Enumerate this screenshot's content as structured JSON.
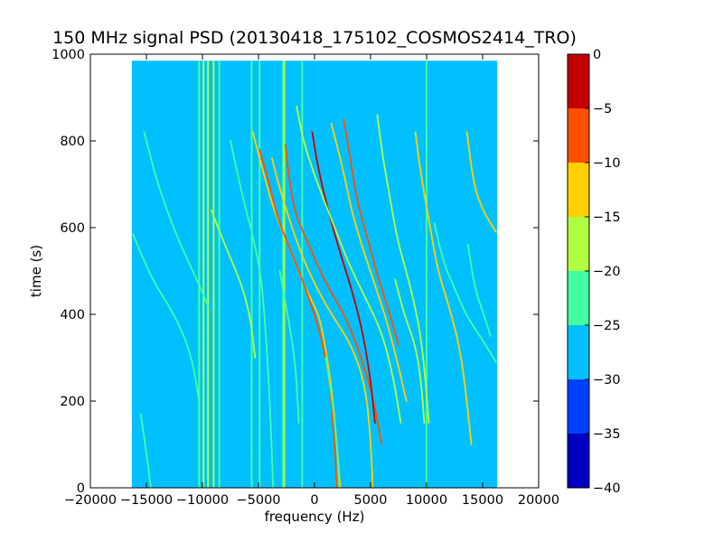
{
  "chart_data": {
    "type": "heatmap",
    "title": "150 MHz signal PSD (20130418_175102_COSMOS2414_TRO)",
    "xlabel": "frequency (Hz)",
    "ylabel": "time (s)",
    "xlim": [
      -20000,
      20000
    ],
    "ylim": [
      0,
      1000
    ],
    "xticks": [
      -20000,
      -15000,
      -10000,
      -5000,
      0,
      5000,
      10000,
      15000,
      20000
    ],
    "yticks": [
      0,
      200,
      400,
      600,
      800,
      1000
    ],
    "xtick_labels": [
      "−20000",
      "−15000",
      "−10000",
      "−5000",
      "0",
      "5000",
      "10000",
      "15000",
      "20000"
    ],
    "ytick_labels": [
      "0",
      "200",
      "400",
      "600",
      "800",
      "1000"
    ],
    "data_extent": {
      "x": [
        -16300,
        16300
      ],
      "y": [
        0,
        985
      ]
    },
    "background_level_db": -27.5,
    "colorbar": {
      "levels": [
        -40,
        -35,
        -30,
        -25,
        -20,
        -15,
        -10,
        -5,
        0
      ],
      "tick_labels": [
        "−40",
        "−35",
        "−30",
        "−25",
        "−20",
        "−15",
        "−10",
        "−5",
        "0"
      ],
      "colors": [
        "#0000c4",
        "#0040ff",
        "#00c0ff",
        "#40ffa0",
        "#b0ff40",
        "#ffd000",
        "#ff5000",
        "#c40000"
      ]
    },
    "vertical_lines": [
      {
        "x": -10300,
        "level_db": -22
      },
      {
        "x": -9900,
        "level_db": -18
      },
      {
        "x": -9500,
        "level_db": -20
      },
      {
        "x": -9000,
        "level_db": -18
      },
      {
        "x": -8500,
        "level_db": -22
      },
      {
        "x": -5600,
        "level_db": -22
      },
      {
        "x": -4900,
        "level_db": -22
      },
      {
        "x": -2800,
        "level_db": -22
      },
      {
        "x": -2700,
        "level_db": -18
      },
      {
        "x": -1100,
        "level_db": -22
      },
      {
        "x": 10000,
        "level_db": -22
      }
    ],
    "tracks": [
      {
        "level_db": -22,
        "points": [
          [
            -16200,
            585
          ],
          [
            -14500,
            480
          ],
          [
            -12500,
            400
          ],
          [
            -11000,
            310
          ],
          [
            -10300,
            200
          ]
        ]
      },
      {
        "level_db": -22,
        "points": [
          [
            -15200,
            820
          ],
          [
            -14000,
            700
          ],
          [
            -12300,
            580
          ],
          [
            -10500,
            480
          ],
          [
            -9500,
            420
          ]
        ]
      },
      {
        "level_db": -18,
        "points": [
          [
            -9200,
            640
          ],
          [
            -8000,
            560
          ],
          [
            -6500,
            470
          ],
          [
            -5700,
            390
          ],
          [
            -5300,
            300
          ]
        ]
      },
      {
        "level_db": -22,
        "points": [
          [
            -7500,
            800
          ],
          [
            -6500,
            680
          ],
          [
            -5400,
            570
          ],
          [
            -4700,
            480
          ],
          [
            -4200,
            300
          ],
          [
            -3900,
            150
          ],
          [
            -3700,
            0
          ]
        ]
      },
      {
        "level_db": -15,
        "points": [
          [
            -5500,
            820
          ],
          [
            -4500,
            720
          ],
          [
            -3500,
            630
          ],
          [
            -2000,
            540
          ],
          [
            -1000,
            470
          ],
          [
            0,
            420
          ],
          [
            600,
            380
          ],
          [
            1500,
            240
          ],
          [
            2000,
            100
          ],
          [
            2300,
            0
          ]
        ]
      },
      {
        "level_db": -10,
        "points": [
          [
            -4900,
            780
          ],
          [
            -4000,
            700
          ],
          [
            -3300,
            620
          ],
          [
            -2000,
            540
          ],
          [
            -800,
            460
          ],
          [
            500,
            360
          ],
          [
            1300,
            260
          ],
          [
            1800,
            100
          ],
          [
            2000,
            0
          ]
        ]
      },
      {
        "level_db": -15,
        "points": [
          [
            -3800,
            760
          ],
          [
            -3000,
            680
          ],
          [
            -1500,
            560
          ],
          [
            -200,
            480
          ],
          [
            1500,
            400
          ],
          [
            3300,
            330
          ],
          [
            4500,
            240
          ],
          [
            5000,
            120
          ],
          [
            5200,
            0
          ]
        ]
      },
      {
        "level_db": -10,
        "points": [
          [
            -2600,
            790
          ],
          [
            -2200,
            700
          ],
          [
            -1700,
            630
          ],
          [
            -500,
            560
          ],
          [
            1000,
            470
          ],
          [
            2700,
            400
          ],
          [
            4200,
            300
          ],
          [
            5300,
            200
          ],
          [
            6000,
            100
          ]
        ]
      },
      {
        "level_db": -5,
        "points": [
          [
            -200,
            820
          ],
          [
            300,
            740
          ],
          [
            1200,
            640
          ],
          [
            2300,
            540
          ],
          [
            3300,
            460
          ],
          [
            4300,
            360
          ],
          [
            5000,
            250
          ],
          [
            5400,
            150
          ]
        ]
      },
      {
        "level_db": -18,
        "points": [
          [
            -1600,
            880
          ],
          [
            -1000,
            800
          ],
          [
            0,
            720
          ],
          [
            1500,
            620
          ],
          [
            3000,
            520
          ],
          [
            4500,
            440
          ],
          [
            6000,
            360
          ],
          [
            7000,
            260
          ],
          [
            7700,
            150
          ]
        ]
      },
      {
        "level_db": -15,
        "points": [
          [
            1500,
            840
          ],
          [
            2500,
            740
          ],
          [
            3300,
            640
          ],
          [
            4200,
            560
          ],
          [
            5500,
            460
          ],
          [
            6500,
            380
          ],
          [
            7500,
            280
          ],
          [
            8200,
            200
          ]
        ]
      },
      {
        "level_db": -10,
        "points": [
          [
            2600,
            850
          ],
          [
            3200,
            760
          ],
          [
            3800,
            660
          ],
          [
            4800,
            570
          ],
          [
            5500,
            500
          ],
          [
            6500,
            420
          ],
          [
            7500,
            330
          ]
        ]
      },
      {
        "level_db": -18,
        "points": [
          [
            5600,
            860
          ],
          [
            6100,
            760
          ],
          [
            6800,
            660
          ],
          [
            7400,
            570
          ],
          [
            8400,
            480
          ],
          [
            9300,
            380
          ],
          [
            9800,
            280
          ],
          [
            10200,
            150
          ]
        ]
      },
      {
        "level_db": -15,
        "points": [
          [
            9000,
            820
          ],
          [
            9500,
            720
          ],
          [
            10200,
            620
          ],
          [
            11000,
            500
          ],
          [
            12000,
            420
          ],
          [
            13000,
            320
          ],
          [
            13600,
            200
          ],
          [
            14000,
            100
          ]
        ]
      },
      {
        "level_db": -18,
        "points": [
          [
            7200,
            480
          ],
          [
            8000,
            400
          ],
          [
            9000,
            330
          ],
          [
            9500,
            250
          ],
          [
            9800,
            150
          ]
        ]
      },
      {
        "level_db": -15,
        "points": [
          [
            13600,
            820
          ],
          [
            14200,
            700
          ],
          [
            15000,
            640
          ],
          [
            16200,
            590
          ]
        ]
      },
      {
        "level_db": -22,
        "points": [
          [
            10700,
            610
          ],
          [
            11500,
            520
          ],
          [
            12500,
            460
          ],
          [
            13500,
            400
          ],
          [
            14500,
            360
          ],
          [
            15500,
            320
          ],
          [
            16200,
            290
          ]
        ]
      },
      {
        "level_db": -22,
        "points": [
          [
            13700,
            560
          ],
          [
            14300,
            460
          ],
          [
            15100,
            400
          ],
          [
            15700,
            350
          ]
        ]
      },
      {
        "level_db": -22,
        "points": [
          [
            -15500,
            170
          ],
          [
            -15000,
            80
          ],
          [
            -14600,
            0
          ]
        ]
      },
      {
        "level_db": -22,
        "points": [
          [
            -3100,
            500
          ],
          [
            -2400,
            400
          ],
          [
            -1700,
            290
          ],
          [
            -1400,
            150
          ]
        ]
      },
      {
        "level_db": -22,
        "points": [
          [
            1000,
            300
          ],
          [
            1600,
            200
          ],
          [
            2000,
            100
          ],
          [
            2200,
            0
          ]
        ]
      }
    ]
  }
}
